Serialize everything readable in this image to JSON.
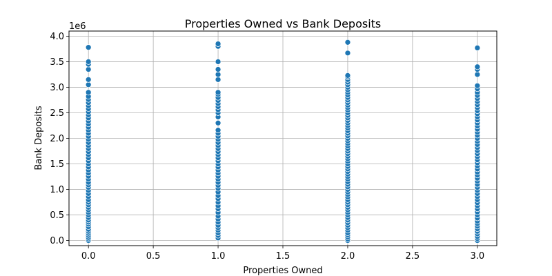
{
  "chart_data": {
    "type": "scatter",
    "title": "Properties Owned vs Bank Deposits",
    "xlabel": "Properties Owned",
    "ylabel": "Bank Deposits",
    "y_offset_label": "1e6",
    "xlim": [
      -0.15,
      3.15
    ],
    "ylim": [
      -0.1,
      4.1
    ],
    "xticks": [
      0.0,
      0.5,
      1.0,
      1.5,
      2.0,
      2.5,
      3.0
    ],
    "xtick_labels": [
      "0.0",
      "0.5",
      "1.0",
      "1.5",
      "2.0",
      "2.5",
      "3.0"
    ],
    "yticks": [
      0.0,
      0.5,
      1.0,
      1.5,
      2.0,
      2.5,
      3.0,
      3.5,
      4.0
    ],
    "ytick_labels": [
      "0.0",
      "0.5",
      "1.0",
      "1.5",
      "2.0",
      "2.5",
      "3.0",
      "3.5",
      "4.0"
    ],
    "grid": true,
    "marker_color": "#1f77b4",
    "series": [
      {
        "x_value": 0,
        "y_values_millions": [
          0.0,
          0.03,
          0.06,
          0.1,
          0.14,
          0.18,
          0.22,
          0.27,
          0.32,
          0.36,
          0.4,
          0.45,
          0.5,
          0.55,
          0.6,
          0.65,
          0.7,
          0.75,
          0.8,
          0.86,
          0.92,
          0.98,
          1.04,
          1.09,
          1.14,
          1.2,
          1.26,
          1.32,
          1.38,
          1.44,
          1.5,
          1.56,
          1.62,
          1.68,
          1.74,
          1.8,
          1.86,
          1.92,
          1.98,
          2.04,
          2.1,
          2.16,
          2.22,
          2.28,
          2.34,
          2.4,
          2.46,
          2.52,
          2.58,
          2.64,
          2.7,
          2.76,
          2.82,
          2.9,
          3.05,
          3.15,
          3.35,
          3.45,
          3.5,
          3.78
        ]
      },
      {
        "x_value": 1,
        "y_values_millions": [
          0.05,
          0.1,
          0.15,
          0.2,
          0.25,
          0.3,
          0.36,
          0.42,
          0.48,
          0.55,
          0.62,
          0.68,
          0.75,
          0.82,
          0.88,
          0.95,
          1.02,
          1.08,
          1.14,
          1.2,
          1.26,
          1.32,
          1.38,
          1.44,
          1.5,
          1.56,
          1.62,
          1.68,
          1.74,
          1.8,
          1.86,
          1.92,
          1.98,
          2.04,
          2.1,
          2.16,
          2.3,
          2.42,
          2.5,
          2.56,
          2.62,
          2.68,
          2.74,
          2.8,
          2.86,
          2.9,
          3.15,
          3.25,
          3.35,
          3.5,
          3.8,
          3.85
        ]
      },
      {
        "x_value": 2,
        "y_values_millions": [
          0.0,
          0.03,
          0.07,
          0.11,
          0.15,
          0.2,
          0.25,
          0.3,
          0.35,
          0.4,
          0.45,
          0.5,
          0.55,
          0.6,
          0.65,
          0.7,
          0.75,
          0.8,
          0.85,
          0.9,
          0.95,
          1.0,
          1.05,
          1.1,
          1.15,
          1.2,
          1.25,
          1.3,
          1.35,
          1.4,
          1.45,
          1.5,
          1.55,
          1.6,
          1.65,
          1.7,
          1.75,
          1.8,
          1.85,
          1.9,
          1.95,
          2.0,
          2.05,
          2.1,
          2.15,
          2.2,
          2.25,
          2.3,
          2.35,
          2.4,
          2.45,
          2.5,
          2.55,
          2.6,
          2.65,
          2.7,
          2.75,
          2.8,
          2.85,
          2.9,
          2.95,
          3.0,
          3.05,
          3.1,
          3.15,
          3.2,
          3.23,
          3.67,
          3.88
        ]
      },
      {
        "x_value": 3,
        "y_values_millions": [
          0.0,
          0.04,
          0.08,
          0.13,
          0.18,
          0.23,
          0.28,
          0.33,
          0.38,
          0.44,
          0.5,
          0.56,
          0.62,
          0.68,
          0.74,
          0.8,
          0.86,
          0.92,
          0.98,
          1.04,
          1.1,
          1.16,
          1.22,
          1.28,
          1.34,
          1.4,
          1.46,
          1.52,
          1.58,
          1.64,
          1.7,
          1.76,
          1.82,
          1.88,
          1.94,
          2.0,
          2.06,
          2.12,
          2.18,
          2.24,
          2.3,
          2.36,
          2.42,
          2.48,
          2.54,
          2.6,
          2.66,
          2.72,
          2.78,
          2.84,
          2.9,
          2.97,
          3.03,
          3.25,
          3.35,
          3.4,
          3.77
        ]
      }
    ]
  }
}
